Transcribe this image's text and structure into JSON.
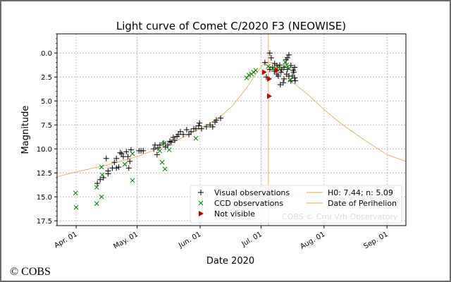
{
  "chart_data": {
    "type": "scatter",
    "title": "Light curve of Comet C/2020 F3 (NEOWISE)",
    "xlabel": "Date 2020",
    "ylabel": "Magnitude",
    "x_unit": "days since Apr. 01 2020",
    "xlim": [
      -9.4,
      162.3
    ],
    "ylim": [
      18,
      -2
    ],
    "y_inverted": true,
    "grid": true,
    "xticks": [
      {
        "x": 0,
        "label": "Apr. 01"
      },
      {
        "x": 30,
        "label": "May. 01"
      },
      {
        "x": 61,
        "label": "Jun. 01"
      },
      {
        "x": 91,
        "label": "Jul. 01"
      },
      {
        "x": 122,
        "label": "Aug. 01"
      },
      {
        "x": 153,
        "label": "Sep. 01"
      }
    ],
    "yticks": [
      {
        "y": 0,
        "label": "0.0"
      },
      {
        "y": 2.5,
        "label": "2.5"
      },
      {
        "y": 5,
        "label": "5.0"
      },
      {
        "y": 7.5,
        "label": "7.5"
      },
      {
        "y": 10,
        "label": "10.0"
      },
      {
        "y": 12.5,
        "label": "12.5"
      },
      {
        "y": 15,
        "label": "15.0"
      },
      {
        "y": 17.5,
        "label": "17.5"
      }
    ],
    "legend_position": "lower-right",
    "series": [
      {
        "name": "Visual observations",
        "marker": "plus",
        "color": "#000000",
        "points": [
          [
            10.4,
            13.6
          ],
          [
            11.8,
            13.2
          ],
          [
            13.4,
            13.0
          ],
          [
            14.8,
            11.0
          ],
          [
            15.7,
            12.3
          ],
          [
            15.7,
            12.6
          ],
          [
            17.8,
            12.0
          ],
          [
            18.8,
            11.4
          ],
          [
            19.8,
            11.0
          ],
          [
            19.8,
            12.0
          ],
          [
            20.9,
            11.9
          ],
          [
            21.7,
            10.4
          ],
          [
            22.4,
            10.5
          ],
          [
            23.2,
            10.8
          ],
          [
            24.7,
            10.3
          ],
          [
            25.5,
            10.8
          ],
          [
            25.9,
            12.0
          ],
          [
            26.4,
            11.3
          ],
          [
            27.0,
            10.1
          ],
          [
            30.9,
            10.2
          ],
          [
            31.9,
            10.2
          ],
          [
            33.0,
            10.2
          ],
          [
            38.2,
            10.0
          ],
          [
            38.8,
            9.6
          ],
          [
            39.8,
            10.6
          ],
          [
            40.2,
            9.9
          ],
          [
            41.2,
            9.6
          ],
          [
            43.0,
            9.4
          ],
          [
            44.0,
            9.8
          ],
          [
            45.1,
            9.6
          ],
          [
            46.1,
            9.2
          ],
          [
            46.8,
            9.3
          ],
          [
            47.8,
            8.8
          ],
          [
            48.5,
            9.1
          ],
          [
            49.6,
            8.7
          ],
          [
            50.3,
            8.5
          ],
          [
            51.3,
            8.2
          ],
          [
            52.7,
            8.5
          ],
          [
            54.4,
            8.0
          ],
          [
            55.5,
            8.5
          ],
          [
            56.5,
            8.2
          ],
          [
            57.9,
            7.9
          ],
          [
            58.9,
            7.9
          ],
          [
            60.3,
            7.6
          ],
          [
            60.7,
            7.3
          ],
          [
            61.7,
            7.9
          ],
          [
            64.1,
            7.7
          ],
          [
            65.9,
            7.5
          ],
          [
            67.2,
            7.7
          ],
          [
            68.3,
            7.2
          ],
          [
            69.0,
            7.0
          ],
          [
            71.1,
            6.8
          ],
          [
            95.3,
            0.0
          ],
          [
            96.0,
            0.5
          ],
          [
            92.9,
            1.0
          ],
          [
            104.7,
            0.2
          ],
          [
            104.0,
            0.5
          ],
          [
            103.3,
            0.7
          ],
          [
            97.7,
            1.1
          ],
          [
            98.8,
            1.3
          ],
          [
            100.2,
            1.25
          ],
          [
            101.2,
            1.7
          ],
          [
            102.3,
            1.5
          ],
          [
            105.7,
            1.3
          ],
          [
            107.5,
            1.5
          ],
          [
            107.1,
            2.0
          ],
          [
            106.4,
            2.4
          ],
          [
            107.5,
            2.6
          ],
          [
            107.8,
            2.9
          ],
          [
            104.7,
            2.4
          ],
          [
            103.6,
            2.2
          ],
          [
            99.5,
            2.4
          ],
          [
            98.8,
            2.2
          ],
          [
            102.3,
            2.7
          ],
          [
            101.9,
            3.1
          ],
          [
            100.5,
            3.3
          ],
          [
            96.7,
            1.5
          ],
          [
            95.3,
            1.7
          ],
          [
            105.7,
            2.9
          ],
          [
            104.0,
            1.7
          ],
          [
            93.6,
            2.5
          ],
          [
            97.5,
            1.9
          ],
          [
            100.8,
            2.0
          ],
          [
            106.8,
            1.8
          ]
        ]
      },
      {
        "name": "CCD observations",
        "marker": "x",
        "color": "#008000",
        "points": [
          [
            -0.3,
            14.6
          ],
          [
            0,
            16.1
          ],
          [
            10.1,
            14.0
          ],
          [
            10.1,
            15.7
          ],
          [
            12.5,
            11.9
          ],
          [
            12.8,
            12.7
          ],
          [
            12.5,
            15.0
          ],
          [
            23.9,
            11.6
          ],
          [
            27.7,
            10.5
          ],
          [
            27.7,
            13.3
          ],
          [
            41.2,
            10.2
          ],
          [
            42.3,
            11.4
          ],
          [
            43.7,
            12.1
          ],
          [
            43.3,
            9.4
          ],
          [
            45.8,
            10.1
          ],
          [
            58.9,
            8.9
          ],
          [
            83.9,
            2.6
          ],
          [
            85.0,
            2.3
          ],
          [
            86.3,
            2.2
          ],
          [
            87.3,
            2.0
          ],
          [
            88.4,
            1.8
          ],
          [
            103.6,
            1.25
          ],
          [
            104.7,
            1.6
          ],
          [
            101.2,
            1.6
          ],
          [
            96.7,
            1.6
          ],
          [
            105.4,
            2.8
          ],
          [
            99.5,
            1.5
          ],
          [
            102.9,
            0.95
          ],
          [
            94.5,
            1.4
          ]
        ]
      },
      {
        "name": "Not visible",
        "marker": "triangle-right",
        "color": "#cc0000",
        "points": [
          [
            92.5,
            2.0
          ],
          [
            95.0,
            2.7
          ],
          [
            95.0,
            4.5
          ],
          [
            98.8,
            1.8
          ]
        ]
      }
    ],
    "model": {
      "name": "H0: 7.44; n: 5.09",
      "color": "#f0a040",
      "points": [
        [
          -9.4,
          12.9
        ],
        [
          0,
          12.4
        ],
        [
          15,
          11.7
        ],
        [
          30,
          10.8
        ],
        [
          45,
          9.6
        ],
        [
          61,
          7.9
        ],
        [
          70,
          6.8
        ],
        [
          77,
          5.5
        ],
        [
          84,
          3.6
        ],
        [
          89,
          2.0
        ],
        [
          92,
          1.2
        ],
        [
          94,
          0.95
        ],
        [
          97,
          1.0
        ],
        [
          100,
          1.5
        ],
        [
          105,
          2.9
        ],
        [
          108,
          3.3
        ],
        [
          115,
          4.5
        ],
        [
          122,
          5.9
        ],
        [
          130,
          7.3
        ],
        [
          140,
          8.8
        ],
        [
          153,
          10.6
        ],
        [
          162.3,
          11.3
        ]
      ]
    },
    "perihelion": {
      "name": "Date of Perihelion",
      "x": 94.6,
      "color": "#f0a040"
    },
    "watermark": "COBS © Crni Vrh Observatory"
  },
  "footer": {
    "copyright": "© COBS"
  }
}
